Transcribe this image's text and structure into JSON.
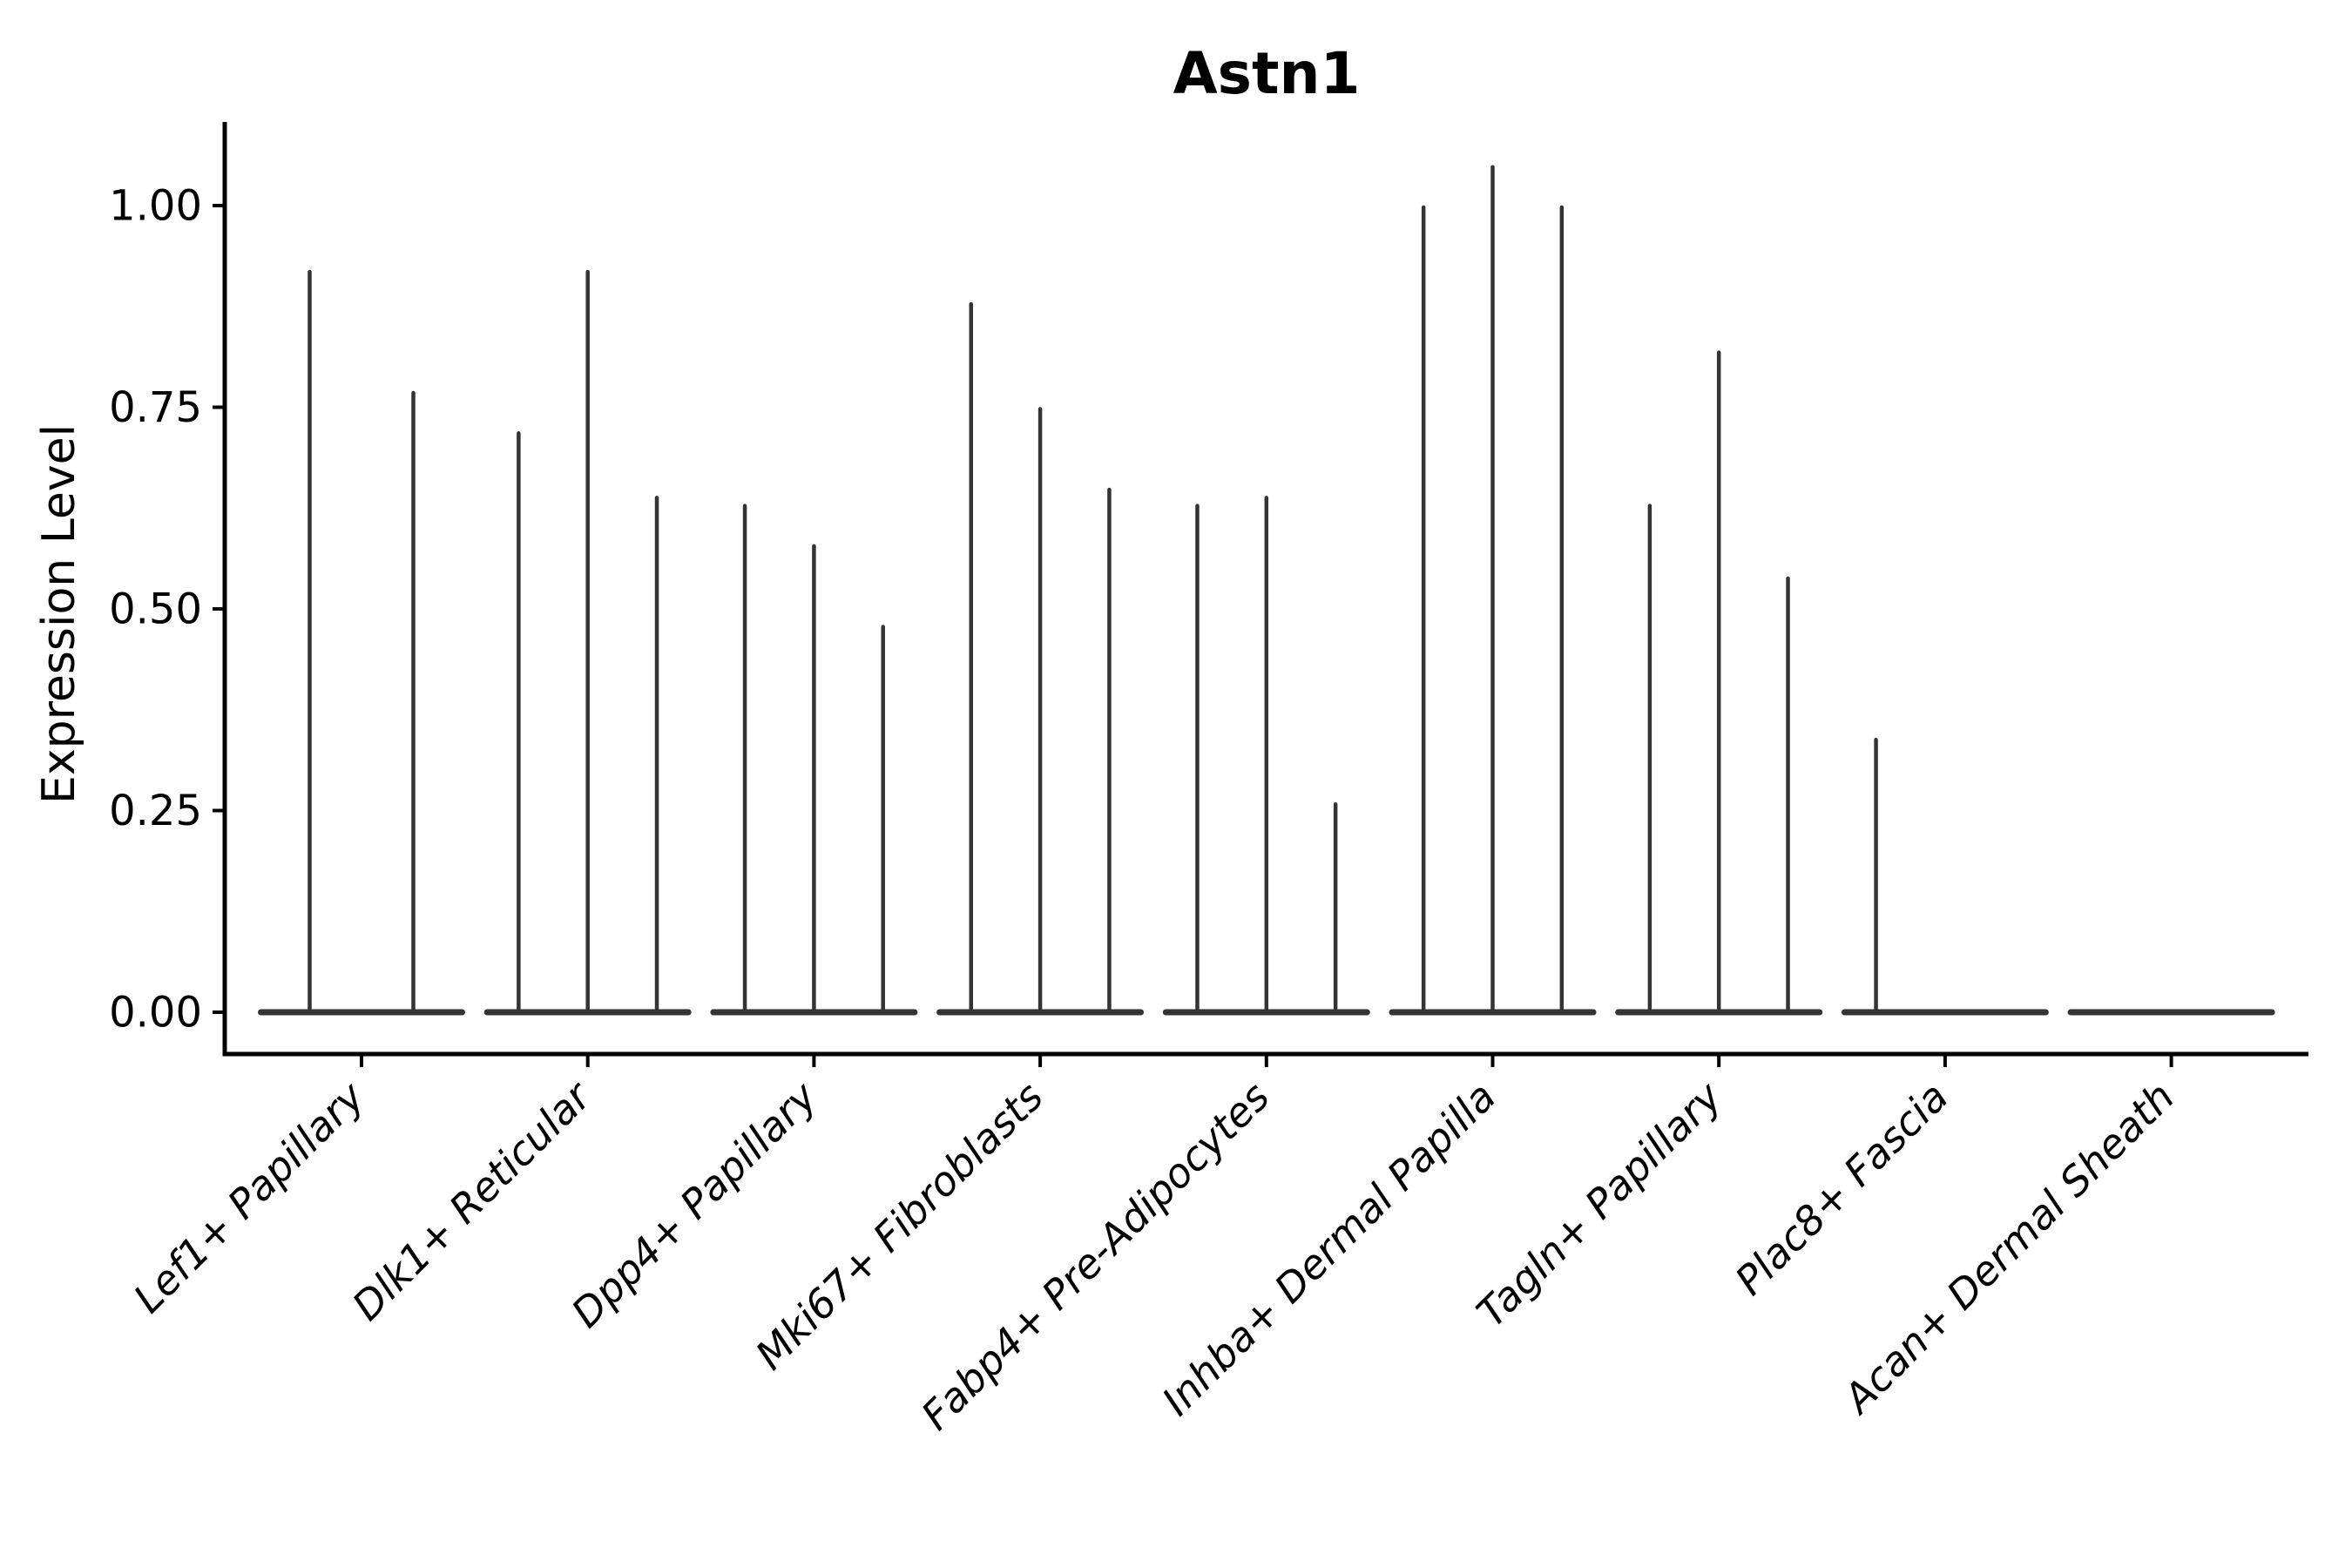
{
  "chart_data": {
    "type": "violin",
    "title": "Astn1",
    "ylabel": "Expression Level",
    "xlabel": "",
    "ytick_labels": [
      "0.00",
      "0.25",
      "0.50",
      "0.75",
      "1.00"
    ],
    "yticks": [
      0.0,
      0.25,
      0.5,
      0.75,
      1.0
    ],
    "ylim": [
      -0.05,
      1.1
    ],
    "grid": false,
    "legend": "none",
    "categories": [
      "Lef1+ Papillary",
      "Dlk1+ Reticular",
      "Dpp4+ Papillary",
      "Mki67+ Fibroblasts",
      "Fabp4+ Pre-Adipocytes",
      "Inhba+ Dermal Papilla",
      "Tagln+ Papillary",
      "Plac8+ Fascia",
      "Acan+ Dermal Sheath"
    ],
    "groups": [
      {
        "category": "Lef1+ Papillary",
        "violin_maxima": [
          0.92,
          0.77
        ]
      },
      {
        "category": "Dlk1+ Reticular",
        "violin_maxima": [
          0.72,
          0.92,
          0.64
        ]
      },
      {
        "category": "Dpp4+ Papillary",
        "violin_maxima": [
          0.63,
          0.58,
          0.48
        ]
      },
      {
        "category": "Mki67+ Fibroblasts",
        "violin_maxima": [
          0.88,
          0.75,
          0.65
        ]
      },
      {
        "category": "Fabp4+ Pre-Adipocytes",
        "violin_maxima": [
          0.63,
          0.64,
          0.26
        ]
      },
      {
        "category": "Inhba+ Dermal Papilla",
        "violin_maxima": [
          1.0,
          1.05,
          1.0
        ]
      },
      {
        "category": "Tagln+ Papillary",
        "violin_maxima": [
          0.63,
          0.82,
          0.54
        ]
      },
      {
        "category": "Plac8+ Fascia",
        "violin_maxima": [
          0.34,
          0.0,
          0.0
        ]
      },
      {
        "category": "Acan+ Dermal Sheath",
        "violin_maxima": [
          0.0,
          0.0,
          0.0
        ]
      }
    ],
    "colors": {
      "violin": "#343434",
      "axis": "#000000",
      "text": "#000000",
      "background": "#ffffff"
    }
  }
}
